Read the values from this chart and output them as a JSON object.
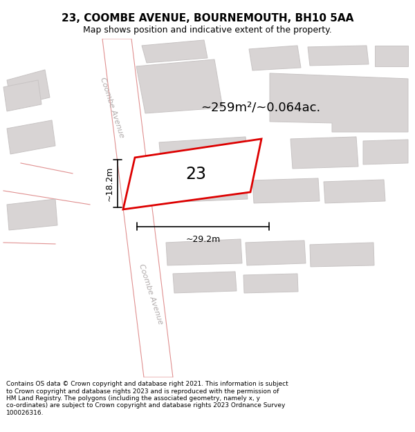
{
  "title": "23, COOMBE AVENUE, BOURNEMOUTH, BH10 5AA",
  "subtitle": "Map shows position and indicative extent of the property.",
  "footer": "Contains OS data © Crown copyright and database right 2021. This information is subject\nto Crown copyright and database rights 2023 and is reproduced with the permission of\nHM Land Registry. The polygons (including the associated geometry, namely x, y\nco-ordinates) are subject to Crown copyright and database rights 2023 Ordnance Survey\n100026316.",
  "area_label": "~259m²/~0.064ac.",
  "number_label": "23",
  "dim_width": "~29.2m",
  "dim_height": "~18.2m",
  "road_label_upper": "Coombe Avenue",
  "road_label_lower": "Coombe Avenue",
  "bg_map_color": "#f2f0f0",
  "bg_color": "#ffffff",
  "plot_color": "#dd0000",
  "building_fill": "#d8d4d4",
  "building_edge": "#c8c4c4",
  "road_fill": "#ffffff",
  "road_stroke": "#e09090",
  "title_fontsize": 11,
  "subtitle_fontsize": 9,
  "footer_fontsize": 6.5
}
